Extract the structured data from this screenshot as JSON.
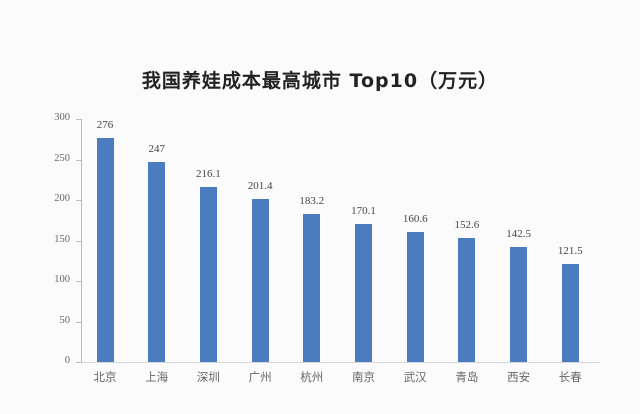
{
  "chart_data": {
    "type": "bar",
    "title": "我国养娃成本最高城市 Top10（万元）",
    "xlabel": "",
    "ylabel": "",
    "ylim": [
      0,
      300
    ],
    "yticks": [
      0,
      50,
      100,
      150,
      200,
      250,
      300
    ],
    "grid": false,
    "legend": null,
    "categories": [
      "北京",
      "上海",
      "深圳",
      "广州",
      "杭州",
      "南京",
      "武汉",
      "青岛",
      "西安",
      "长春"
    ],
    "values": [
      276,
      247,
      216.1,
      201.4,
      183.2,
      170.1,
      160.6,
      152.6,
      142.5,
      121.5
    ],
    "value_labels": [
      "276",
      "247",
      "216.1",
      "201.4",
      "183.2",
      "170.1",
      "160.6",
      "152.6",
      "142.5",
      "121.5"
    ],
    "colors": {
      "bar": "#4a7cbf",
      "axis": "#a8bfd8",
      "title": "#222222"
    }
  }
}
